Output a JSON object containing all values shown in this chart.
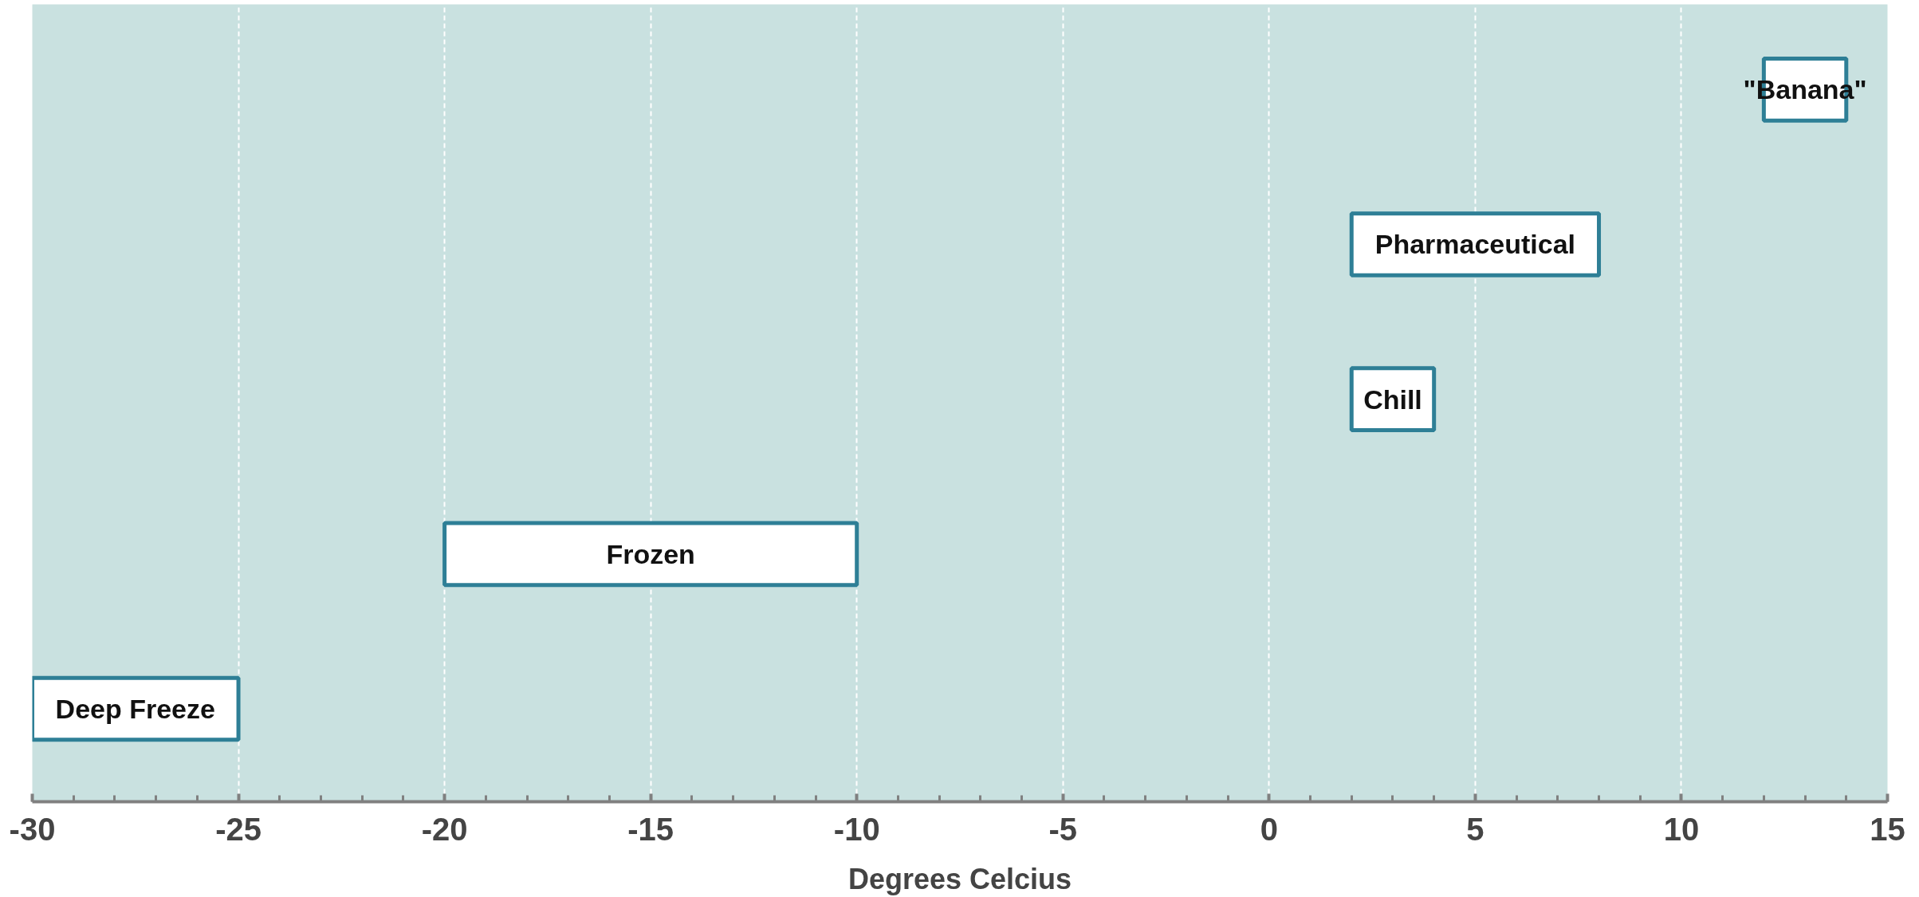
{
  "chart_data": {
    "type": "bar",
    "orientation": "horizontal",
    "xlabel": "Degrees Celcius",
    "categories": [
      "\"Banana\"",
      "Pharmaceutical",
      "Chill",
      "Frozen",
      "Deep Freeze"
    ],
    "base": [
      12,
      2,
      2,
      -20,
      -30
    ],
    "values": [
      2,
      6,
      2,
      10,
      5
    ],
    "color": "#ffffff",
    "xlim": [
      -30,
      15
    ],
    "xticks": [
      -30,
      -25,
      -20,
      -15,
      -10,
      -5,
      0,
      5,
      10,
      15
    ],
    "grid": "x",
    "tick_labels": "x"
  }
}
